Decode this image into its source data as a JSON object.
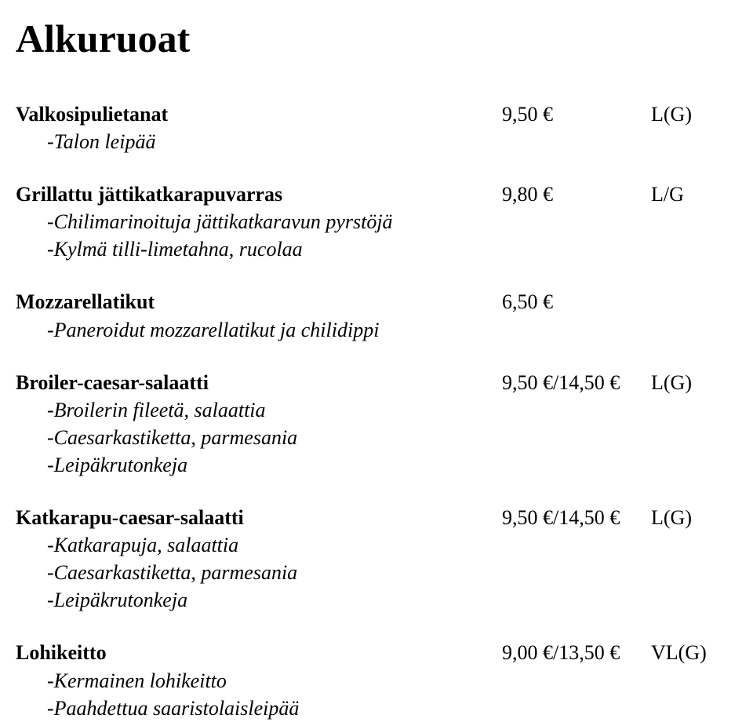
{
  "title": "Alkuruoat",
  "pricePosLeft": 560,
  "dietPosLeft": 770,
  "items": [
    {
      "name": "Valkosipulietanat",
      "price": "9,50 €",
      "diet": "L(G)",
      "desc": [
        "-Talon leipää"
      ]
    },
    {
      "name": "Grillattu jättikatkarapuvarras",
      "price": "9,80 €",
      "diet": "L/G",
      "desc": [
        "-Chilimarinoituja jättikatkaravun pyrstöjä",
        "-Kylmä tilli-limetahna, rucolaa"
      ]
    },
    {
      "name": "Mozzarellatikut",
      "price": "6,50 €",
      "diet": "",
      "desc": [
        "-Paneroidut mozzarellatikut ja chilidippi"
      ]
    },
    {
      "name": "Broiler-caesar-salaatti",
      "price": "9,50 €/14,50 €",
      "diet": "L(G)",
      "desc": [
        "-Broilerin fileetä, salaattia",
        "-Caesarkastiketta, parmesania",
        "-Leipäkrutonkeja"
      ]
    },
    {
      "name": "Katkarapu-caesar-salaatti",
      "price": "9,50 €/14,50 €",
      "diet": "L(G)",
      "desc": [
        "-Katkarapuja, salaattia",
        "-Caesarkastiketta, parmesania",
        "-Leipäkrutonkeja"
      ]
    },
    {
      "name": "Lohikeitto",
      "price": "9,00 €/13,50 €",
      "diet": "VL(G)",
      "desc": [
        "-Kermainen lohikeitto",
        "-Paahdettua saaristolaisleipää"
      ]
    }
  ]
}
